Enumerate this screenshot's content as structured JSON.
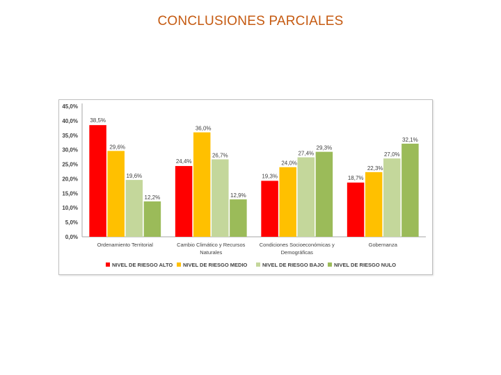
{
  "slide": {
    "title": "CONCLUSIONES PARCIALES"
  },
  "chart_data": {
    "type": "bar",
    "categories": [
      [
        "Ordenamiento Territorial"
      ],
      [
        "Cambio Climático y Recursos",
        "Naturales"
      ],
      [
        "Condiciones Socioeconómicas y",
        "Demográficas"
      ],
      [
        "Gobernanza"
      ]
    ],
    "series": [
      {
        "name": "NIVEL DE RIESGO ALTO",
        "color": "#ff0000",
        "values": [
          38.5,
          24.4,
          19.3,
          18.7
        ],
        "labels": [
          "38,5%",
          "24,4%",
          "19,3%",
          "18,7%"
        ]
      },
      {
        "name": "NIVEL DE RIESGO MEDIO",
        "color": "#ffc000",
        "values": [
          29.6,
          36.0,
          24.0,
          22.3
        ],
        "labels": [
          "29,6%",
          "36,0%",
          "24,0%",
          "22,3%"
        ]
      },
      {
        "name": "NIVEL DE RIESGO BAJO",
        "color": "#c4d79b",
        "values": [
          19.6,
          26.7,
          27.4,
          27.0
        ],
        "labels": [
          "19,6%",
          "26,7%",
          "27,4%",
          "27,0%"
        ]
      },
      {
        "name": "NIVEL DE RIESGO NULO",
        "color": "#9bbb59",
        "values": [
          12.2,
          12.9,
          29.3,
          32.1
        ],
        "labels": [
          "12,2%",
          "12,9%",
          "29,3%",
          "32,1%"
        ]
      }
    ],
    "yticks": [
      "0,0%",
      "5,0%",
      "10,0%",
      "15,0%",
      "20,0%",
      "25,0%",
      "30,0%",
      "35,0%",
      "40,0%",
      "45,0%"
    ],
    "ylim": [
      0,
      45
    ],
    "legend_position": "bottom",
    "grid": false
  }
}
